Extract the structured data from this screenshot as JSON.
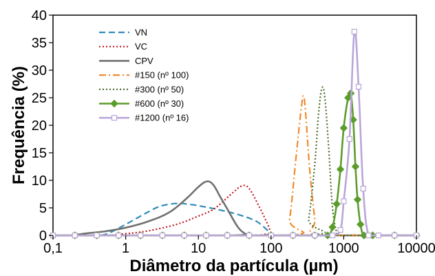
{
  "chart_data": {
    "type": "line",
    "title": "",
    "xlabel": "Diâmetro da partícula (µm)",
    "ylabel": "Frequência (%)",
    "xscale": "log",
    "xlim": [
      0.1,
      10000
    ],
    "ylim": [
      0,
      40
    ],
    "xticks": [
      0.1,
      1,
      10,
      100,
      1000,
      10000
    ],
    "xtick_labels": [
      "0,1",
      "1",
      "10",
      "100",
      "1000",
      "10000"
    ],
    "yticks": [
      0,
      5,
      10,
      15,
      20,
      25,
      30,
      35,
      40
    ],
    "ytick_labels": [
      "0",
      "5",
      "10",
      "15",
      "20",
      "25",
      "30",
      "35",
      "40"
    ],
    "grid": false,
    "legend_position": "top-left",
    "series": [
      {
        "name": "VN",
        "color": "#2e8bb8",
        "dash": "dashed",
        "marker": "none",
        "points": [
          [
            0.1,
            0
          ],
          [
            0.4,
            0
          ],
          [
            0.6,
            0.5
          ],
          [
            1,
            2
          ],
          [
            2,
            4.2
          ],
          [
            3,
            5.3
          ],
          [
            5,
            5.8
          ],
          [
            8,
            5.6
          ],
          [
            12,
            5.2
          ],
          [
            20,
            4.6
          ],
          [
            35,
            3.8
          ],
          [
            60,
            2.7
          ],
          [
            80,
            1.5
          ],
          [
            100,
            0.3
          ],
          [
            110,
            0
          ],
          [
            10000,
            0
          ]
        ]
      },
      {
        "name": "VC",
        "color": "#c0141b",
        "dash": "dotted",
        "marker": "none",
        "points": [
          [
            0.1,
            0
          ],
          [
            0.5,
            0
          ],
          [
            1,
            0.3
          ],
          [
            2,
            0.8
          ],
          [
            5,
            2
          ],
          [
            10,
            3.5
          ],
          [
            15,
            4.5
          ],
          [
            20,
            5.7
          ],
          [
            30,
            7.8
          ],
          [
            40,
            9
          ],
          [
            50,
            8.5
          ],
          [
            70,
            5
          ],
          [
            90,
            2
          ],
          [
            100,
            0.5
          ],
          [
            110,
            0
          ],
          [
            10000,
            0
          ]
        ]
      },
      {
        "name": "CPV",
        "color": "#707070",
        "dash": "solid",
        "marker": "none",
        "points": [
          [
            0.1,
            0
          ],
          [
            0.17,
            0
          ],
          [
            0.3,
            0.4
          ],
          [
            0.5,
            0.7
          ],
          [
            1,
            1.4
          ],
          [
            2,
            2.5
          ],
          [
            4,
            4.2
          ],
          [
            7,
            6.8
          ],
          [
            10,
            8.8
          ],
          [
            13,
            9.8
          ],
          [
            16,
            9.2
          ],
          [
            20,
            7
          ],
          [
            25,
            4.8
          ],
          [
            35,
            1.5
          ],
          [
            45,
            0.2
          ],
          [
            50,
            0
          ],
          [
            10000,
            0
          ]
        ]
      },
      {
        "name": "#150 (nº 100)",
        "color": "#f08a2c",
        "dash": "dashdot",
        "marker": "none",
        "points": [
          [
            0.1,
            0
          ],
          [
            150,
            0
          ],
          [
            180,
            3
          ],
          [
            220,
            14
          ],
          [
            260,
            23
          ],
          [
            280,
            25.3
          ],
          [
            300,
            22
          ],
          [
            340,
            12
          ],
          [
            400,
            3
          ],
          [
            450,
            0
          ],
          [
            10000,
            0
          ]
        ]
      },
      {
        "name": "#300 (nº 50)",
        "color": "#4d6a2a",
        "dash": "dotted",
        "marker": "none",
        "points": [
          [
            0.1,
            0
          ],
          [
            280,
            0
          ],
          [
            330,
            3
          ],
          [
            400,
            13
          ],
          [
            450,
            22
          ],
          [
            500,
            26.7
          ],
          [
            550,
            25
          ],
          [
            620,
            16
          ],
          [
            700,
            5
          ],
          [
            800,
            0.5
          ],
          [
            850,
            0
          ],
          [
            10000,
            0
          ]
        ]
      },
      {
        "name": "#600 (nº 30)",
        "color": "#5b9c2a",
        "dash": "solid",
        "marker": "diamond",
        "points": [
          [
            0.1,
            0
          ],
          [
            0.2,
            0
          ],
          [
            0.4,
            0
          ],
          [
            0.8,
            0
          ],
          [
            1.6,
            0
          ],
          [
            3.2,
            0
          ],
          [
            6.4,
            0
          ],
          [
            12.8,
            0
          ],
          [
            25,
            0
          ],
          [
            50,
            0
          ],
          [
            100,
            0
          ],
          [
            200,
            0
          ],
          [
            400,
            0
          ],
          [
            600,
            0
          ],
          [
            700,
            1.5
          ],
          [
            800,
            5.7
          ],
          [
            900,
            12
          ],
          [
            1000,
            19.5
          ],
          [
            1150,
            25
          ],
          [
            1250,
            25.8
          ],
          [
            1350,
            21
          ],
          [
            1450,
            12.5
          ],
          [
            1550,
            6.5
          ],
          [
            1700,
            2
          ],
          [
            1900,
            0
          ],
          [
            2500,
            0
          ],
          [
            5000,
            0
          ],
          [
            10000,
            0
          ]
        ]
      },
      {
        "name": "#1200 (nº 16)",
        "color": "#b9a6d9",
        "dash": "solid",
        "marker": "square",
        "points": [
          [
            0.1,
            0
          ],
          [
            0.2,
            0
          ],
          [
            0.4,
            0
          ],
          [
            0.8,
            0
          ],
          [
            1.6,
            0
          ],
          [
            3.2,
            0
          ],
          [
            6.4,
            0
          ],
          [
            12.8,
            0
          ],
          [
            25,
            0
          ],
          [
            50,
            0
          ],
          [
            100,
            0
          ],
          [
            200,
            0
          ],
          [
            400,
            0
          ],
          [
            700,
            0
          ],
          [
            900,
            1
          ],
          [
            1000,
            6.2
          ],
          [
            1200,
            17.5
          ],
          [
            1400,
            37
          ],
          [
            1600,
            27
          ],
          [
            1850,
            8.5
          ],
          [
            2200,
            0
          ],
          [
            3000,
            0
          ],
          [
            5000,
            0
          ],
          [
            10000,
            0
          ]
        ]
      }
    ]
  }
}
